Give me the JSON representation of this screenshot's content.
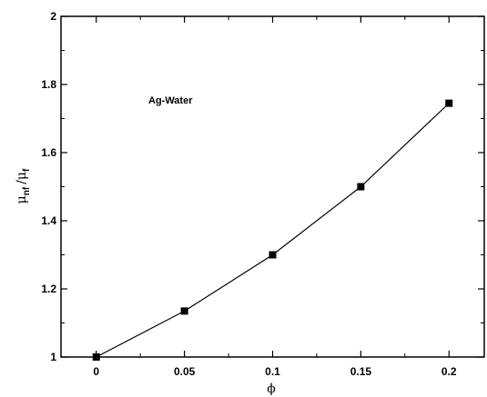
{
  "chart_data": {
    "type": "line",
    "x": [
      0,
      0.05,
      0.1,
      0.15,
      0.2
    ],
    "series": [
      {
        "values": [
          1.0,
          1.135,
          1.3,
          1.5,
          1.745
        ],
        "color": "#000000",
        "marker": "square"
      }
    ],
    "xlim": [
      -0.02,
      0.22
    ],
    "ylim": [
      1,
      2
    ],
    "xticks": [
      "0",
      "0.05",
      "0.1",
      "0.15",
      "0.2"
    ],
    "yticks": [
      "1",
      "1.2",
      "1.4",
      "1.6",
      "1.8",
      "2"
    ],
    "xlabel": "ϕ",
    "ylabel": {
      "main1": "μ",
      "sub1": "nf",
      "slash": "/",
      "main2": "μ",
      "sub2": "f"
    },
    "annotation": "Ag-Water",
    "grid": false
  }
}
